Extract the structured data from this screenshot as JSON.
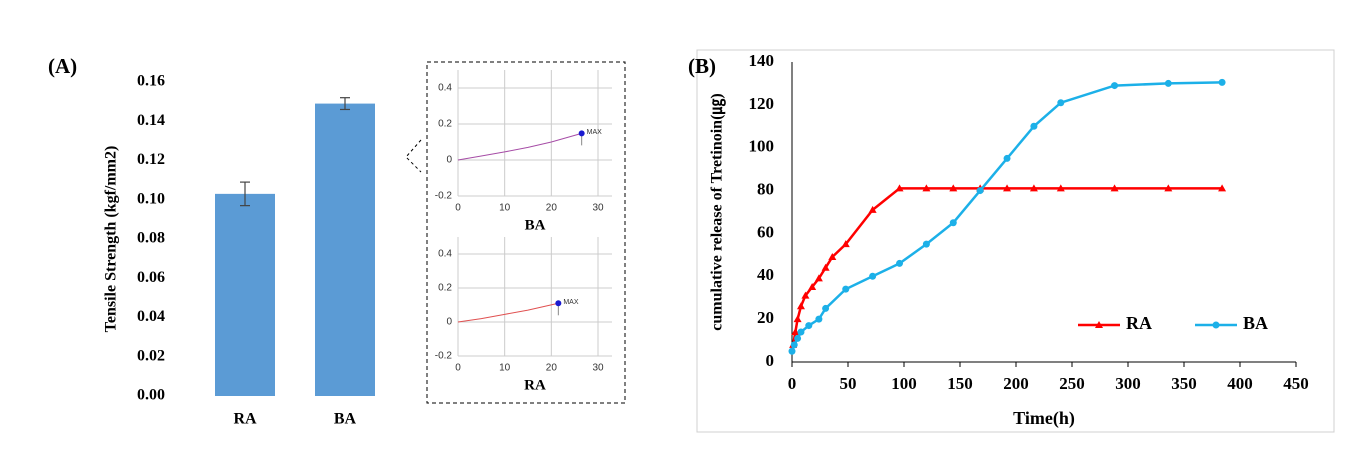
{
  "chart_data": [
    {
      "type": "bar",
      "panel_label": "(A)",
      "ylabel": "Tensile Strength (kgf/mm2)",
      "categories": [
        "RA",
        "BA"
      ],
      "values": [
        0.103,
        0.149
      ],
      "errors": [
        0.006,
        0.003
      ],
      "color": "#5b9bd5",
      "ylim": [
        0,
        0.16
      ],
      "yticks": [
        {
          "value": 0,
          "label": "0.00"
        },
        0.02,
        0.04,
        0.06,
        0.08,
        {
          "value": 0.1,
          "label": "0.10"
        },
        0.12,
        0.14,
        0.16
      ]
    },
    {
      "type": "line",
      "xlabel": "BA",
      "x": [
        0,
        5,
        10,
        15,
        20,
        26.5
      ],
      "values": [
        0,
        0.022,
        0.045,
        0.07,
        0.1,
        0.148
      ],
      "color": "#a64ca6",
      "xlim": [
        0,
        33
      ],
      "ylim": [
        -0.2,
        0.5
      ],
      "xticks": [
        0,
        10,
        20,
        30
      ],
      "yticks": [
        -0.2,
        0,
        0.2,
        0.4
      ],
      "grid": true,
      "annotation": {
        "text": "MAX",
        "x": 26.5,
        "y": 0.148
      }
    },
    {
      "type": "line",
      "xlabel": "RA",
      "x": [
        0,
        5,
        10,
        15,
        21.5
      ],
      "values": [
        0,
        0.02,
        0.045,
        0.07,
        0.11
      ],
      "color": "#e05050",
      "xlim": [
        0,
        33
      ],
      "ylim": [
        -0.2,
        0.5
      ],
      "xticks": [
        0,
        10,
        20,
        30
      ],
      "yticks": [
        -0.2,
        0,
        0.2,
        0.4
      ],
      "grid": true,
      "annotation": {
        "text": "MAX",
        "x": 21.5,
        "y": 0.11
      }
    },
    {
      "type": "line",
      "panel_label": "(B)",
      "xlabel": "Time(h)",
      "ylabel": "cumulative release of Tretinoin(㎍)",
      "xlim": [
        0,
        450
      ],
      "ylim": [
        0,
        140
      ],
      "xticks": [
        0,
        50,
        100,
        150,
        200,
        250,
        300,
        350,
        400,
        450
      ],
      "yticks": [
        0,
        20,
        40,
        60,
        80,
        100,
        120,
        140
      ],
      "legend": "lower right",
      "series": [
        {
          "name": "RA",
          "color": "#ff0000",
          "marker": "triangle",
          "x": [
            1,
            3,
            5,
            8,
            12,
            18,
            24,
            30,
            36,
            48,
            72,
            96,
            120,
            144,
            168,
            192,
            216,
            240,
            288,
            336,
            384
          ],
          "values": [
            8,
            14,
            20,
            26,
            31,
            35,
            39,
            44,
            49,
            55,
            71,
            81,
            81,
            81,
            81,
            81,
            81,
            81,
            81,
            81,
            81
          ]
        },
        {
          "name": "BA",
          "color": "#1cb0e8",
          "marker": "circle",
          "x": [
            0,
            2,
            5,
            8,
            15,
            24,
            30,
            48,
            72,
            96,
            120,
            144,
            168,
            192,
            216,
            240,
            288,
            336,
            384
          ],
          "values": [
            5,
            8,
            11,
            14,
            17,
            20,
            25,
            34,
            40,
            46,
            55,
            65,
            80,
            95,
            110,
            121,
            129,
            130,
            130.5
          ]
        }
      ]
    }
  ]
}
